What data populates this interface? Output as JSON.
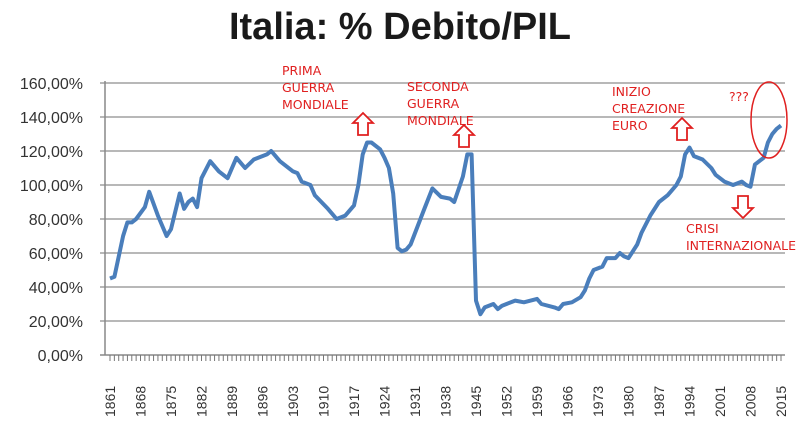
{
  "chart_data": {
    "type": "line",
    "title": "Italia: % Debito/PIL",
    "xlabel": "",
    "ylabel": "",
    "ylim": [
      0,
      160
    ],
    "yticks": [
      "0,00%",
      "20,00%",
      "40,00%",
      "60,00%",
      "80,00%",
      "100,00%",
      "120,00%",
      "140,00%",
      "160,00%"
    ],
    "xticks": [
      "1861",
      "1868",
      "1875",
      "1882",
      "1889",
      "1896",
      "1903",
      "1910",
      "1917",
      "1924",
      "1931",
      "1938",
      "1945",
      "1952",
      "1959",
      "1966",
      "1973",
      "1980",
      "1987",
      "1994",
      "2001",
      "2008",
      "2015"
    ],
    "xlim": [
      1861,
      2015
    ],
    "grid": "horizontal",
    "line_color": "#4a7ebb",
    "x": [
      1861,
      1862,
      1864,
      1865,
      1866,
      1867,
      1869,
      1870,
      1872,
      1874,
      1875,
      1877,
      1878,
      1879,
      1880,
      1881,
      1882,
      1884,
      1886,
      1888,
      1890,
      1892,
      1894,
      1897,
      1898,
      1900,
      1903,
      1904,
      1905,
      1907,
      1908,
      1911,
      1913,
      1915,
      1917,
      1918,
      1919,
      1920,
      1921,
      1923,
      1924,
      1925,
      1926,
      1927,
      1928,
      1929,
      1930,
      1933,
      1935,
      1937,
      1939,
      1940,
      1942,
      1943,
      1944,
      1945,
      1946,
      1947,
      1949,
      1950,
      1951,
      1952,
      1954,
      1956,
      1959,
      1960,
      1963,
      1964,
      1965,
      1967,
      1969,
      1970,
      1971,
      1972,
      1974,
      1975,
      1977,
      1978,
      1979,
      1980,
      1982,
      1983,
      1985,
      1987,
      1989,
      1990,
      1991,
      1992,
      1993,
      1994,
      1995,
      1997,
      1999,
      2000,
      2002,
      2004,
      2006,
      2007,
      2008,
      2009,
      2011,
      2012,
      2013,
      2014,
      2015
    ],
    "values": [
      45,
      46,
      70,
      78,
      78,
      80,
      87,
      96,
      82,
      70,
      74,
      95,
      86,
      90,
      92,
      87,
      104,
      114,
      108,
      104,
      116,
      110,
      115,
      118,
      120,
      114,
      108,
      107,
      102,
      100,
      94,
      86,
      80,
      82,
      88,
      100,
      118,
      125,
      125,
      121,
      116,
      110,
      95,
      63,
      61,
      62,
      65,
      85,
      98,
      93,
      92,
      90,
      105,
      118,
      118,
      32,
      24,
      28,
      30,
      27,
      29,
      30,
      32,
      31,
      33,
      30,
      28,
      27,
      30,
      31,
      34,
      38,
      45,
      50,
      52,
      57,
      57,
      60,
      58,
      57,
      65,
      72,
      82,
      90,
      94,
      97,
      100,
      105,
      118,
      122,
      117,
      115,
      110,
      106,
      102,
      100,
      102,
      100,
      99,
      112,
      116,
      125,
      130,
      133,
      135
    ]
  },
  "annotations": {
    "ww1": [
      "PRIMA",
      "GUERRA",
      "MONDIALE"
    ],
    "ww2": [
      "SECONDA",
      "GUERRA",
      "MONDIALE"
    ],
    "euro": [
      "INIZIO",
      "CREAZIONE",
      "EURO"
    ],
    "question": "???",
    "crisis": [
      "CRISI",
      "INTERNAZIONALE"
    ],
    "color": "#e02020"
  }
}
